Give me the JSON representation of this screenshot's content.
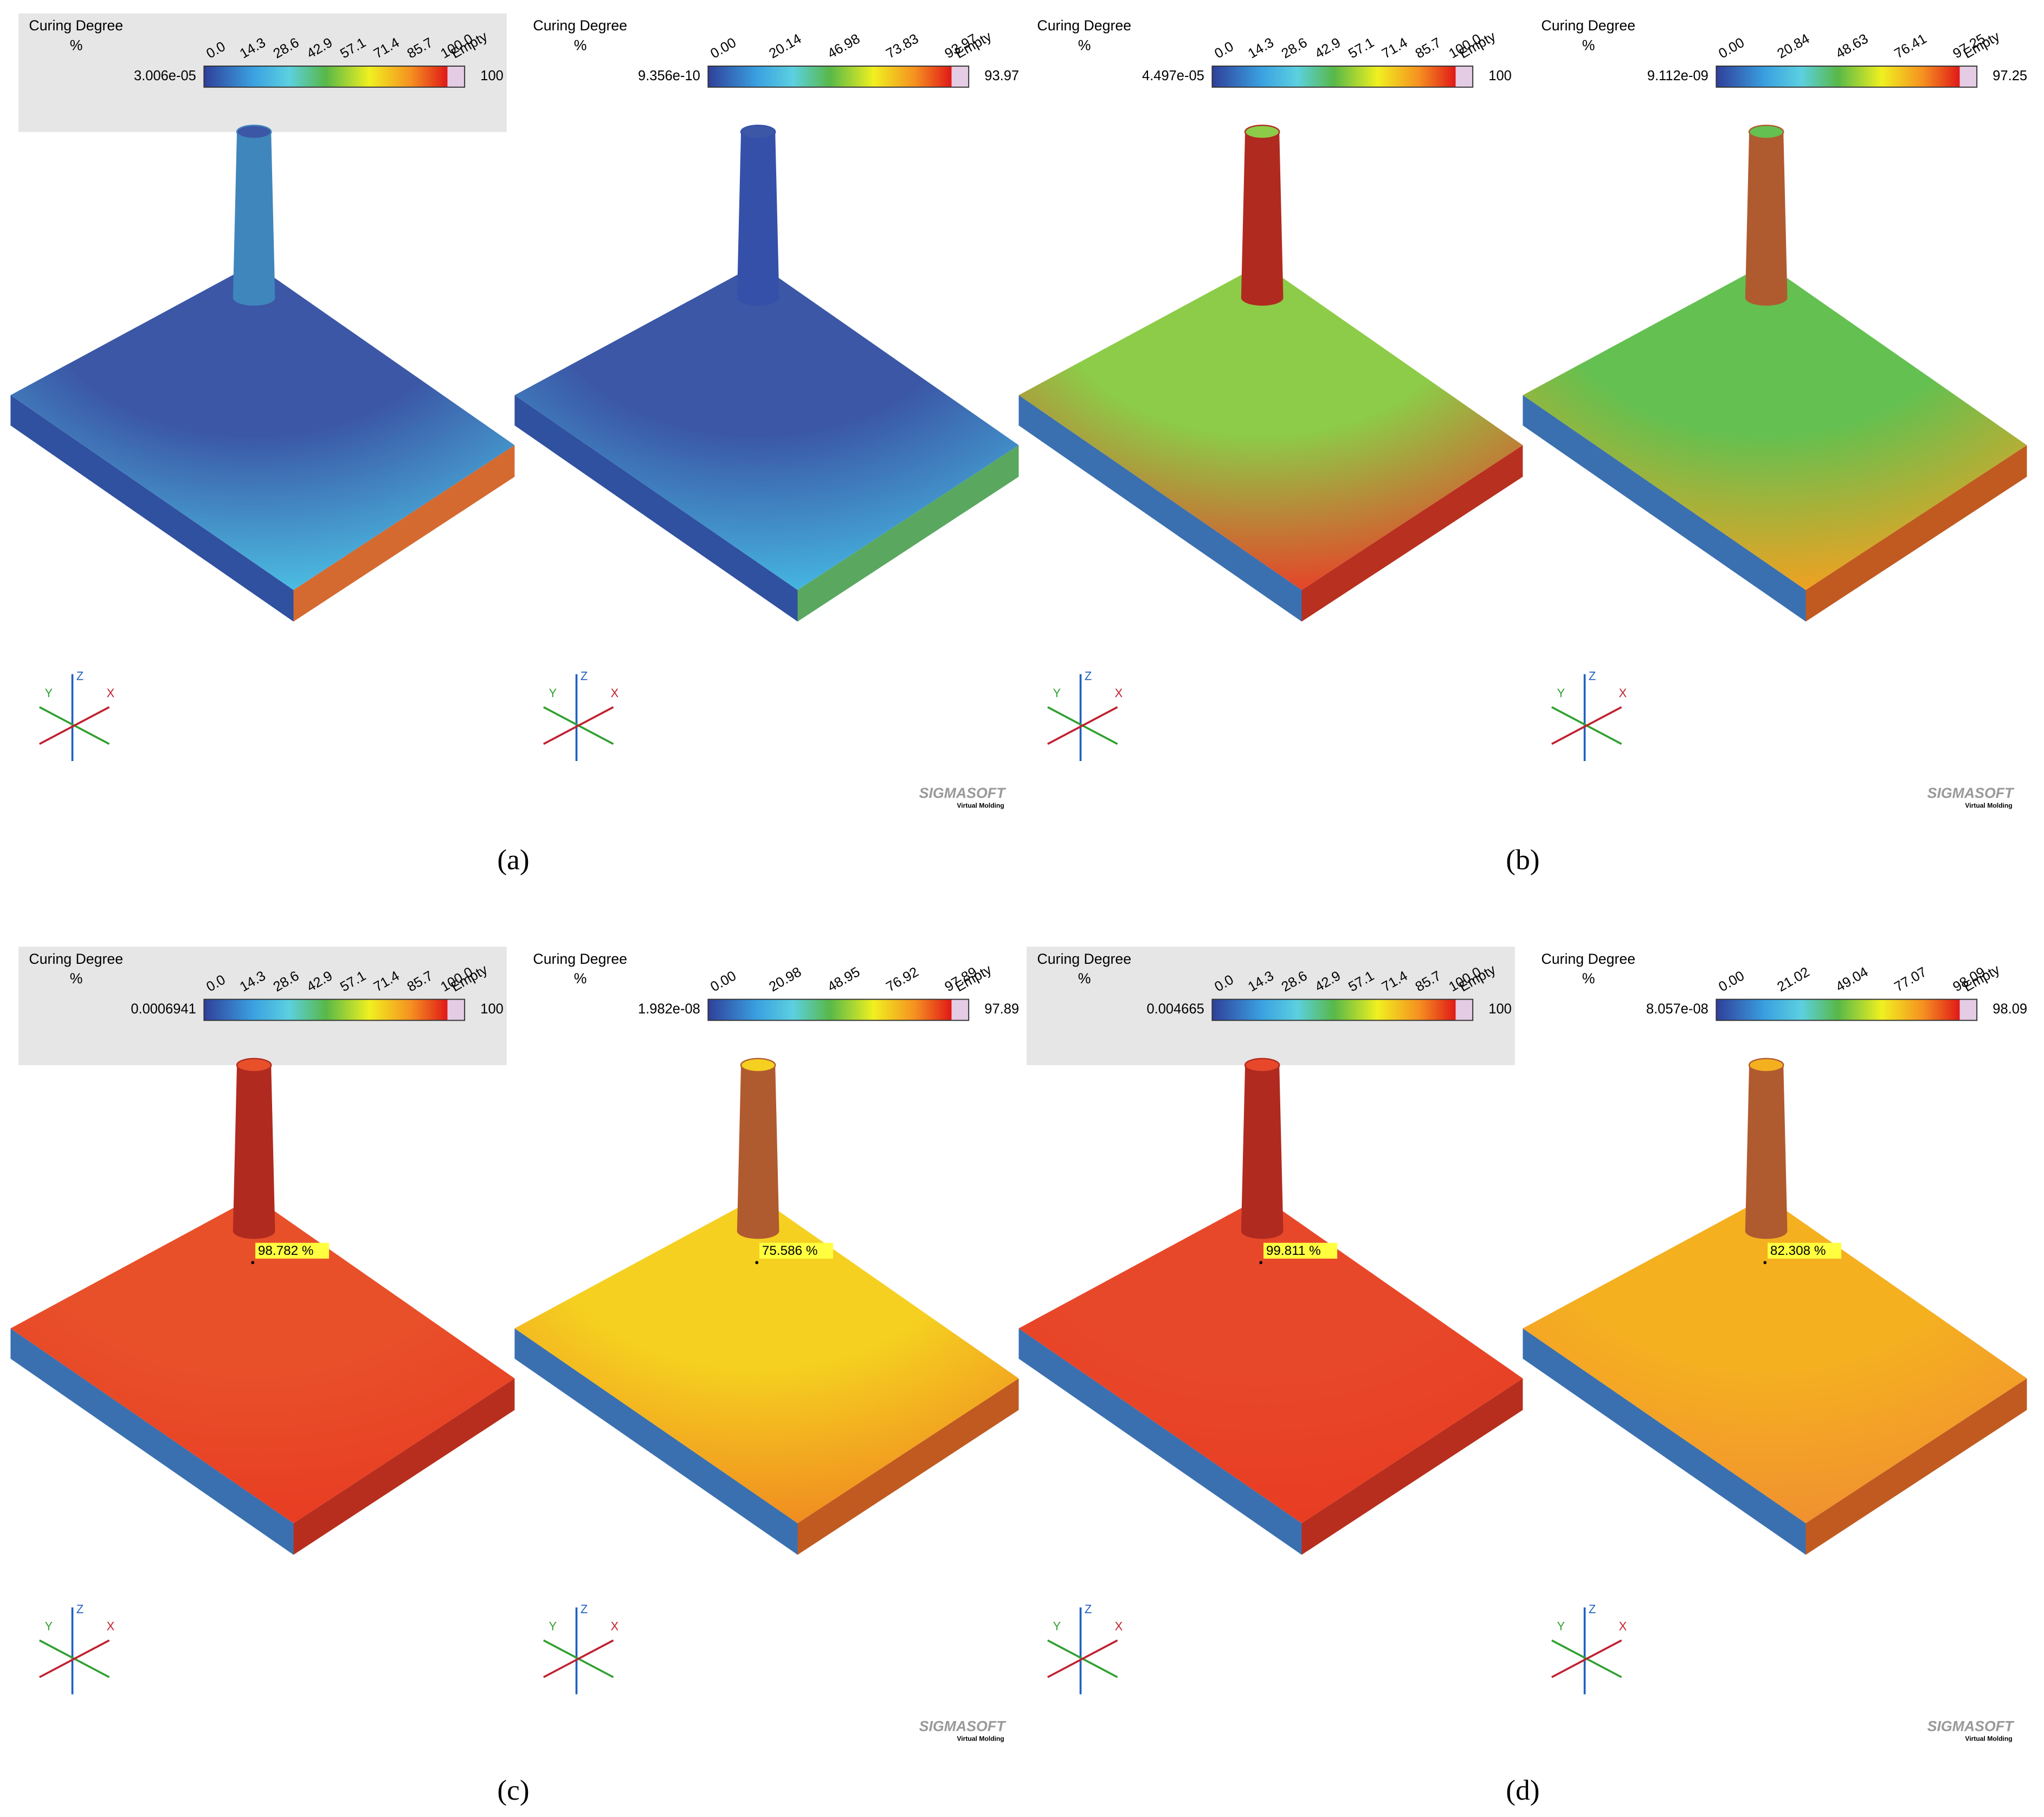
{
  "figure": {
    "captions": [
      "(a)",
      "(b)",
      "(c)",
      "(d)"
    ],
    "panels": [
      {
        "legend": {
          "title": "Curing Degree",
          "unit": "%",
          "min": "3.006e-05",
          "max": "100",
          "ticks": [
            "0.0",
            "14.3",
            "28.6",
            "42.9",
            "57.1",
            "71.4",
            "85.7",
            "100.0"
          ],
          "empty": "Empty",
          "boxed": true
        },
        "axes": {
          "x": "X",
          "y": "Y",
          "z": "Z"
        },
        "colors": {
          "top": "#3b57a6",
          "bottom": "#4cc0e4",
          "sprue": "#3f86bc",
          "side_left": "#3050a0",
          "side_right": "#d46a30"
        }
      },
      {
        "legend": {
          "title": "Curing Degree",
          "unit": "%",
          "min": "9.356e-10",
          "max": "93.97",
          "ticks": [
            "0.00",
            "20.14",
            "46.98",
            "73.83",
            "93.97"
          ],
          "empty": "Empty",
          "boxed": false
        },
        "axes": {
          "x": "X",
          "y": "Y",
          "z": "Z"
        },
        "logo": {
          "name": "SIGMASOFT",
          "tagline": "Virtual Molding"
        },
        "colors": {
          "top": "#3b57a6",
          "bottom": "#46b8e2",
          "sprue": "#3550a8",
          "side_left": "#3050a0",
          "side_right": "#5aa860"
        }
      },
      {
        "legend": {
          "title": "Curing Degree",
          "unit": "%",
          "min": "4.497e-05",
          "max": "100",
          "ticks": [
            "0.0",
            "14.3",
            "28.6",
            "42.9",
            "57.1",
            "71.4",
            "85.7",
            "100.0"
          ],
          "empty": "Empty",
          "boxed": false
        },
        "axes": {
          "x": "X",
          "y": "Y",
          "z": "Z"
        },
        "colors": {
          "top": "#8ccc48",
          "bottom": "#e84028",
          "sprue": "#b02a20",
          "side_left": "#3a70b0",
          "side_right": "#b83020"
        }
      },
      {
        "legend": {
          "title": "Curing Degree",
          "unit": "%",
          "min": "9.112e-09",
          "max": "97.25",
          "ticks": [
            "0.00",
            "20.84",
            "48.63",
            "76.41",
            "97.25"
          ],
          "empty": "Empty",
          "boxed": false
        },
        "axes": {
          "x": "X",
          "y": "Y",
          "z": "Z"
        },
        "logo": {
          "name": "SIGMASOFT",
          "tagline": "Virtual Molding"
        },
        "colors": {
          "top": "#64c050",
          "bottom": "#f4a020",
          "sprue": "#b05a30",
          "side_left": "#3a70b0",
          "side_right": "#c05a20"
        }
      },
      {
        "legend": {
          "title": "Curing Degree",
          "unit": "%",
          "min": "0.0006941",
          "max": "100",
          "ticks": [
            "0.0",
            "14.3",
            "28.6",
            "42.9",
            "57.1",
            "71.4",
            "85.7",
            "100.0"
          ],
          "empty": "Empty",
          "boxed": true
        },
        "axes": {
          "x": "X",
          "y": "Y",
          "z": "Z"
        },
        "probe": "98.782 %",
        "colors": {
          "top": "#e8502a",
          "bottom": "#e83c22",
          "sprue": "#b02a20",
          "side_left": "#3a70b0",
          "side_right": "#b82e1e"
        }
      },
      {
        "legend": {
          "title": "Curing Degree",
          "unit": "%",
          "min": "1.982e-08",
          "max": "97.89",
          "ticks": [
            "0.00",
            "20.98",
            "48.95",
            "76.92",
            "97.89"
          ],
          "empty": "Empty",
          "boxed": false
        },
        "axes": {
          "x": "X",
          "y": "Y",
          "z": "Z"
        },
        "probe": "75.586 %",
        "logo": {
          "name": "SIGMASOFT",
          "tagline": "Virtual Molding"
        },
        "colors": {
          "top": "#f5d020",
          "bottom": "#f08a20",
          "sprue": "#b05a30",
          "side_left": "#3a70b0",
          "side_right": "#c05a20"
        }
      },
      {
        "legend": {
          "title": "Curing Degree",
          "unit": "%",
          "min": "0.004665",
          "max": "100",
          "ticks": [
            "0.0",
            "14.3",
            "28.6",
            "42.9",
            "57.1",
            "71.4",
            "85.7",
            "100.0"
          ],
          "empty": "Empty",
          "boxed": true
        },
        "axes": {
          "x": "X",
          "y": "Y",
          "z": "Z"
        },
        "probe": "99.811 %",
        "colors": {
          "top": "#e8482a",
          "bottom": "#e83c22",
          "sprue": "#b02a20",
          "side_left": "#3a70b0",
          "side_right": "#b82e1e"
        }
      },
      {
        "legend": {
          "title": "Curing Degree",
          "unit": "%",
          "min": "8.057e-08",
          "max": "98.09",
          "ticks": [
            "0.00",
            "21.02",
            "49.04",
            "77.07",
            "98.09"
          ],
          "empty": "Empty",
          "boxed": false
        },
        "axes": {
          "x": "X",
          "y": "Y",
          "z": "Z"
        },
        "probe": "82.308 %",
        "logo": {
          "name": "SIGMASOFT",
          "tagline": "Virtual Molding"
        },
        "colors": {
          "top": "#f5b020",
          "bottom": "#f09030",
          "sprue": "#b05a30",
          "side_left": "#3a70b0",
          "side_right": "#c05a20"
        }
      }
    ]
  }
}
